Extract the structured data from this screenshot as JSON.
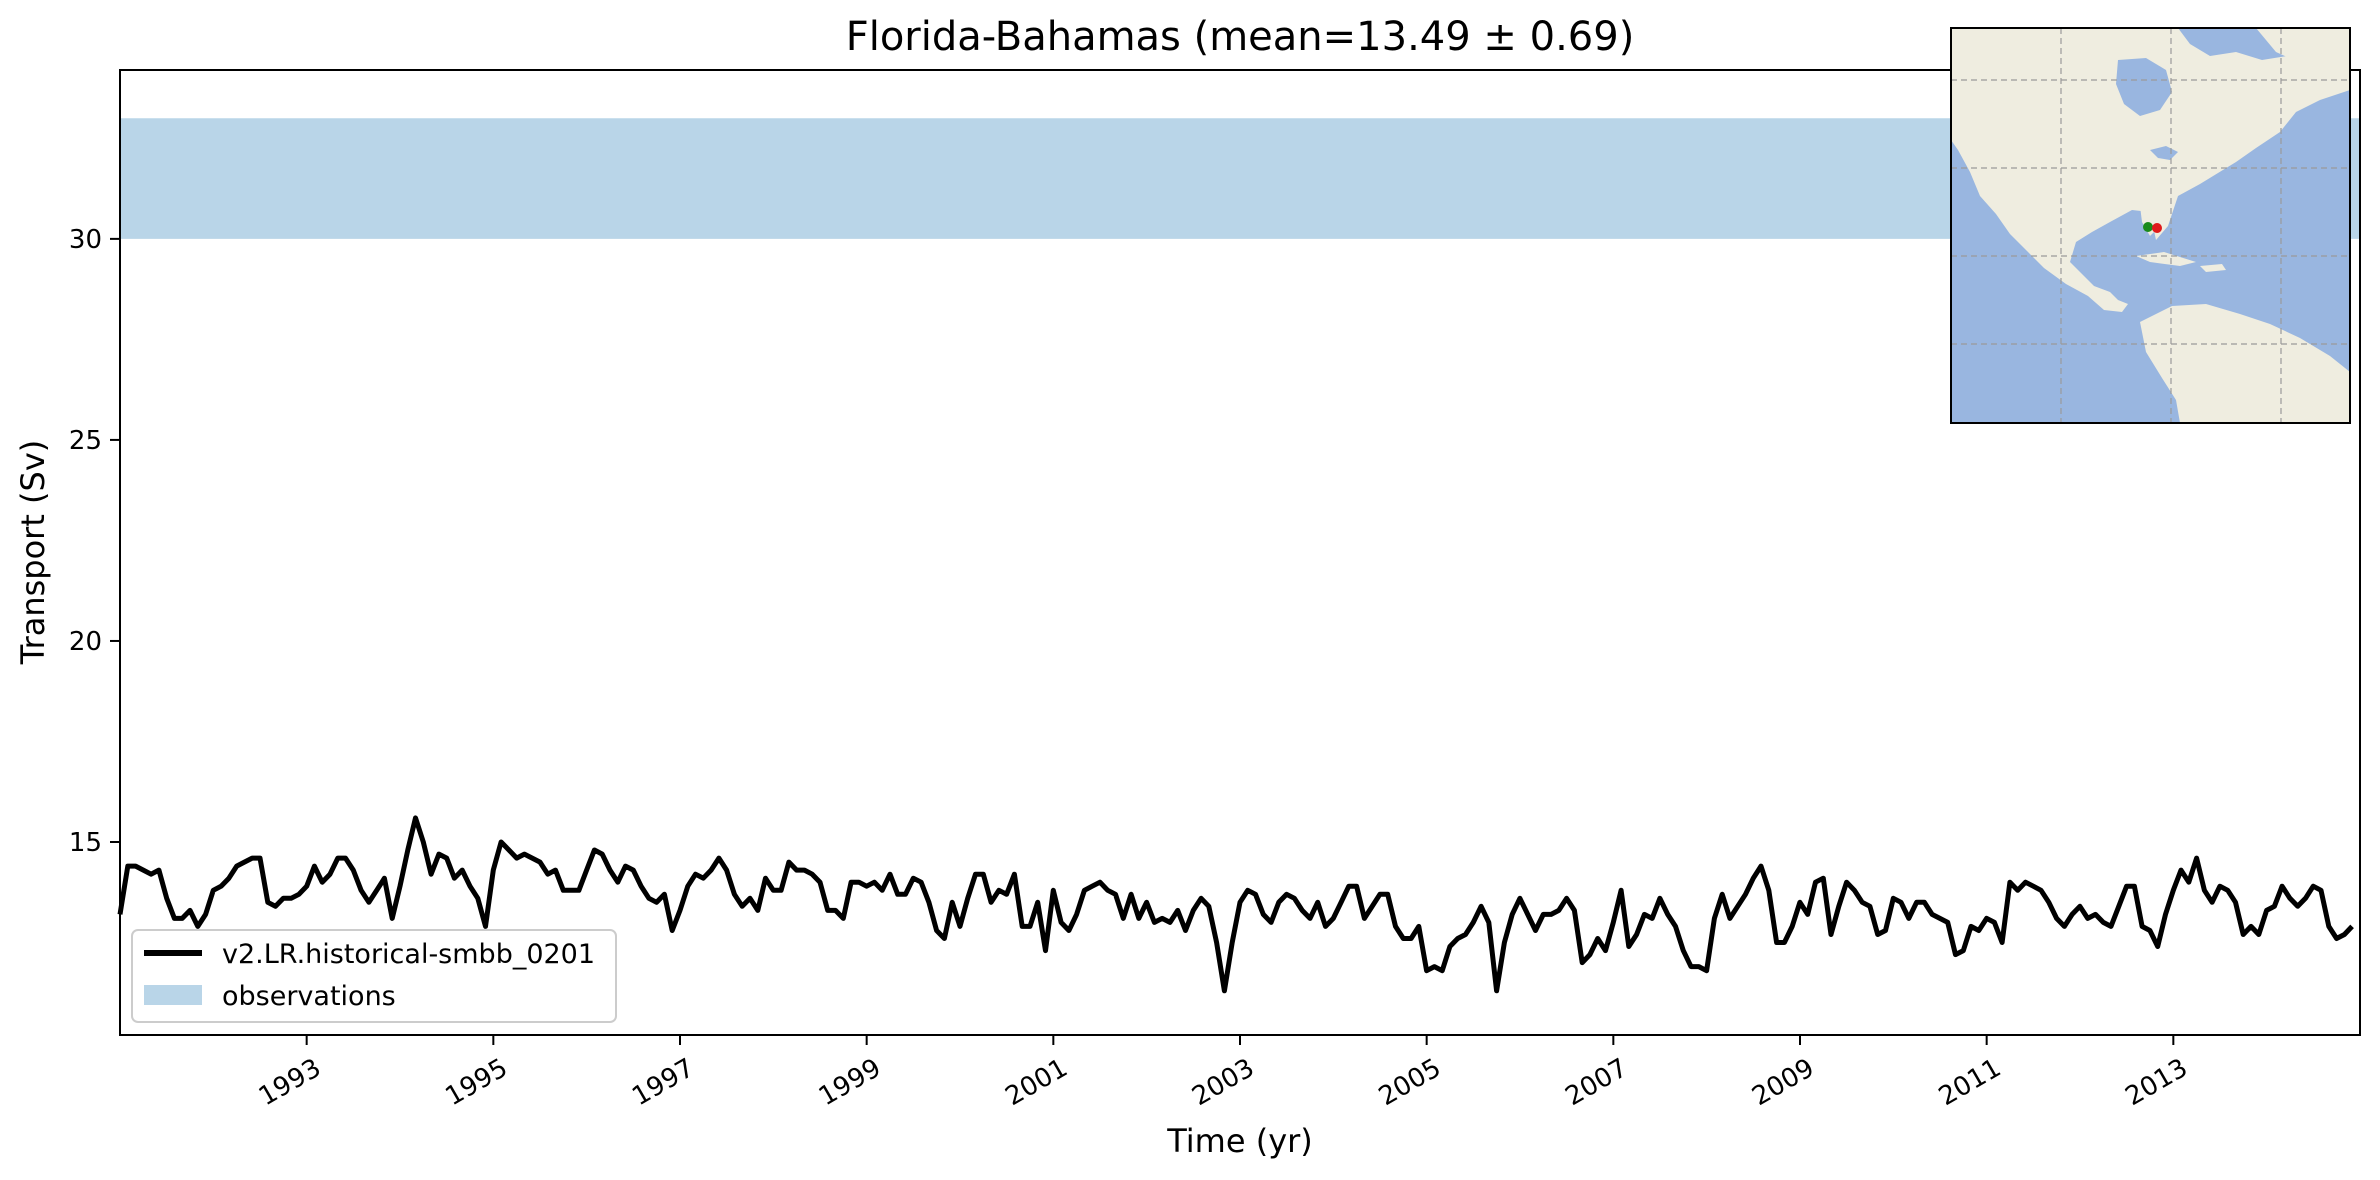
{
  "chart_data": {
    "type": "line",
    "title": "Florida-Bahamas (mean=13.49 ± 0.69)",
    "xlabel": "Time (yr)",
    "ylabel": "Transport (Sv)",
    "xlim": [
      1991.0,
      2015.0
    ],
    "ylim": [
      10.2,
      34.2
    ],
    "yticks": [
      15,
      20,
      25,
      30
    ],
    "xticks": [
      1993,
      1995,
      1997,
      1999,
      2001,
      2003,
      2005,
      2007,
      2009,
      2011,
      2013
    ],
    "xtick_labels": [
      "1993",
      "1995",
      "1997",
      "1999",
      "2001",
      "2003",
      "2005",
      "2007",
      "2009",
      "2011",
      "2013"
    ],
    "ytick_labels": [
      "15",
      "20",
      "25",
      "30"
    ],
    "grid": false,
    "legend_position": "lower-left",
    "observations_band": {
      "label": "observations",
      "y_low": 30.0,
      "y_high": 33.0,
      "color": "#b9d5e8"
    },
    "series": [
      {
        "name": "v2.LR.historical-smbb_0201",
        "color": "#000000",
        "x_start": 1991.0,
        "x_step": 0.08333,
        "values": [
          13.2,
          14.4,
          14.4,
          14.3,
          14.2,
          14.3,
          13.6,
          13.1,
          13.1,
          13.3,
          12.9,
          13.2,
          13.8,
          13.9,
          14.1,
          14.4,
          14.5,
          14.6,
          14.6,
          13.5,
          13.4,
          13.6,
          13.6,
          13.7,
          13.9,
          14.4,
          14.0,
          14.2,
          14.6,
          14.6,
          14.3,
          13.8,
          13.5,
          13.8,
          14.1,
          13.1,
          13.9,
          14.8,
          15.6,
          15.0,
          14.2,
          14.7,
          14.6,
          14.1,
          14.3,
          13.9,
          13.6,
          12.9,
          14.3,
          15.0,
          14.8,
          14.6,
          14.7,
          14.6,
          14.5,
          14.2,
          14.3,
          13.8,
          13.8,
          13.8,
          14.3,
          14.8,
          14.7,
          14.3,
          14.0,
          14.4,
          14.3,
          13.9,
          13.6,
          13.5,
          13.7,
          12.8,
          13.3,
          13.9,
          14.2,
          14.1,
          14.3,
          14.6,
          14.3,
          13.7,
          13.4,
          13.6,
          13.3,
          14.1,
          13.8,
          13.8,
          14.5,
          14.3,
          14.3,
          14.2,
          14.0,
          13.3,
          13.3,
          13.1,
          14.0,
          14.0,
          13.9,
          14.0,
          13.8,
          14.2,
          13.7,
          13.7,
          14.1,
          14.0,
          13.5,
          12.8,
          12.6,
          13.5,
          12.9,
          13.6,
          14.2,
          14.2,
          13.5,
          13.8,
          13.7,
          14.2,
          12.9,
          12.9,
          13.5,
          12.3,
          13.8,
          13.0,
          12.8,
          13.2,
          13.8,
          13.9,
          14.0,
          13.8,
          13.7,
          13.1,
          13.7,
          13.1,
          13.5,
          13.0,
          13.1,
          13.0,
          13.3,
          12.8,
          13.3,
          13.6,
          13.4,
          12.5,
          11.3,
          12.5,
          13.5,
          13.8,
          13.7,
          13.2,
          13.0,
          13.5,
          13.7,
          13.6,
          13.3,
          13.1,
          13.5,
          12.9,
          13.1,
          13.5,
          13.9,
          13.9,
          13.1,
          13.4,
          13.7,
          13.7,
          12.9,
          12.6,
          12.6,
          12.9,
          11.8,
          11.9,
          11.8,
          12.4,
          12.6,
          12.7,
          13.0,
          13.4,
          13.0,
          11.3,
          12.5,
          13.2,
          13.6,
          13.2,
          12.8,
          13.2,
          13.2,
          13.3,
          13.6,
          13.3,
          12.0,
          12.2,
          12.6,
          12.3,
          13.0,
          13.8,
          12.4,
          12.7,
          13.2,
          13.1,
          13.6,
          13.2,
          12.9,
          12.3,
          11.9,
          11.9,
          11.8,
          13.1,
          13.7,
          13.1,
          13.4,
          13.7,
          14.1,
          14.4,
          13.8,
          12.5,
          12.5,
          12.9,
          13.5,
          13.2,
          14.0,
          14.1,
          12.7,
          13.4,
          14.0,
          13.8,
          13.5,
          13.4,
          12.7,
          12.8,
          13.6,
          13.5,
          13.1,
          13.5,
          13.5,
          13.2,
          13.1,
          13.0,
          12.2,
          12.3,
          12.9,
          12.8,
          13.1,
          13.0,
          12.5,
          14.0,
          13.8,
          14.0,
          13.9,
          13.8,
          13.5,
          13.1,
          12.9,
          13.2,
          13.4,
          13.1,
          13.2,
          13.0,
          12.9,
          13.4,
          13.9,
          13.9,
          12.9,
          12.8,
          12.4,
          13.2,
          13.8,
          14.3,
          14.0,
          14.6,
          13.8,
          13.5,
          13.9,
          13.8,
          13.5,
          12.7,
          12.9,
          12.7,
          13.3,
          13.4,
          13.9,
          13.6,
          13.4,
          13.6,
          13.9,
          13.8,
          12.9,
          12.6,
          12.7,
          12.9
        ]
      }
    ]
  },
  "inset_map": {
    "description_colors": {
      "ocean": "#99b6e0",
      "land": "#efede0",
      "grid": "#9a9a9a"
    },
    "markers": [
      {
        "name": "green-point",
        "color": "#1a8a1a"
      },
      {
        "name": "red-point",
        "color": "#e01a1a"
      }
    ]
  }
}
